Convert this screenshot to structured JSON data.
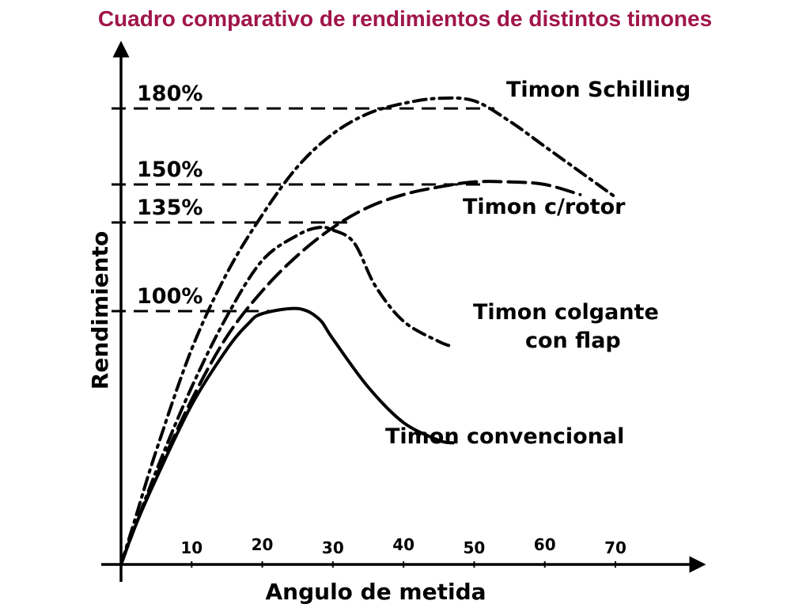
{
  "chart_data": {
    "type": "line",
    "title": "Cuadro comparativo de rendimientos de distintos timones",
    "xlabel": "Angulo de metida",
    "ylabel": "Rendimiento",
    "x_ticks": [
      10,
      20,
      30,
      40,
      50,
      60,
      70
    ],
    "xlim": [
      0,
      80
    ],
    "ylim": [
      0,
      200
    ],
    "reference_lines": [
      {
        "value": 180,
        "label": "180%"
      },
      {
        "value": 150,
        "label": "150%"
      },
      {
        "value": 135,
        "label": "135%"
      },
      {
        "value": 100,
        "label": "100%"
      }
    ],
    "series": [
      {
        "name": "Timon Schilling",
        "label_lines": [
          "Timon Schilling"
        ],
        "style": "dash-dot",
        "x": [
          0,
          2,
          5,
          10,
          15,
          20,
          25,
          30,
          35,
          40,
          45,
          50,
          55,
          60,
          65,
          70
        ],
        "y": [
          0,
          18,
          45,
          85,
          115,
          138,
          157,
          170,
          178,
          182,
          184,
          183,
          175,
          165,
          155,
          145
        ]
      },
      {
        "name": "Timon c/rotor",
        "label_lines": [
          "Timon c/rotor"
        ],
        "style": "dash",
        "x": [
          0,
          2,
          5,
          10,
          15,
          20,
          25,
          30,
          35,
          40,
          45,
          50,
          55,
          60,
          65
        ],
        "y": [
          0,
          15,
          35,
          65,
          90,
          108,
          122,
          133,
          141,
          146,
          149,
          151,
          151,
          150,
          146
        ]
      },
      {
        "name": "Timon colgante con flap",
        "label_lines": [
          "Timon colgante",
          "con flap"
        ],
        "style": "dash-dot",
        "x": [
          0,
          5,
          10,
          15,
          20,
          25,
          28,
          30,
          33,
          36,
          40,
          45,
          47
        ],
        "y": [
          0,
          37,
          70,
          98,
          120,
          130,
          133,
          132,
          127,
          110,
          96,
          88,
          86
        ]
      },
      {
        "name": "Timon convencional",
        "label_lines": [
          "Timon convencional"
        ],
        "style": "solid",
        "x": [
          0,
          2,
          5,
          10,
          15,
          18,
          20,
          25,
          28,
          30,
          35,
          40,
          45,
          47
        ],
        "y": [
          0,
          15,
          34,
          63,
          85,
          95,
          99,
          101,
          97,
          89,
          70,
          56,
          49,
          48
        ]
      }
    ]
  }
}
